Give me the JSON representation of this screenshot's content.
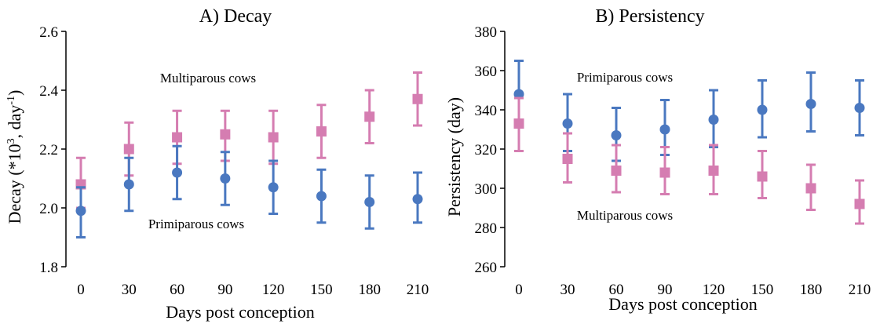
{
  "colors": {
    "primiparous": "#4a78c0",
    "multiparous": "#d57db1",
    "axis": "#000000"
  },
  "chart_data": [
    {
      "type": "scatter",
      "title": "A) Decay",
      "xlabel": "Days post conception",
      "ylabel": "Decay (*10",
      "ylabel_sup1": "3",
      "ylabel_mid": ", day",
      "ylabel_sup2": "-1",
      "ylabel_end": ")",
      "x": [
        0,
        30,
        60,
        90,
        120,
        150,
        180,
        210
      ],
      "x_tick_labels": [
        "0",
        "30",
        "60",
        "90",
        "120",
        "150",
        "180",
        "210"
      ],
      "ylim": [
        1.8,
        2.6
      ],
      "y_ticks": [
        1.8,
        2.0,
        2.2,
        2.4,
        2.6
      ],
      "y_tick_labels": [
        "1.8",
        "2.0",
        "2.2",
        "2.4",
        "2.6"
      ],
      "grid": false,
      "series": [
        {
          "name": "Multiparous cows",
          "marker": "square",
          "color": "#d57db1",
          "values": [
            2.08,
            2.2,
            2.24,
            2.25,
            2.24,
            2.26,
            2.31,
            2.37
          ],
          "err_low": [
            2.0,
            2.11,
            2.15,
            2.16,
            2.15,
            2.17,
            2.22,
            2.28
          ],
          "err_high": [
            2.17,
            2.29,
            2.33,
            2.33,
            2.33,
            2.35,
            2.4,
            2.46
          ]
        },
        {
          "name": "Primiparous cows",
          "marker": "circle",
          "color": "#4a78c0",
          "values": [
            1.99,
            2.08,
            2.12,
            2.1,
            2.07,
            2.04,
            2.02,
            2.03
          ],
          "err_low": [
            1.9,
            1.99,
            2.03,
            2.01,
            1.98,
            1.95,
            1.93,
            1.95
          ],
          "err_high": [
            2.07,
            2.17,
            2.21,
            2.19,
            2.16,
            2.13,
            2.11,
            2.12
          ]
        }
      ]
    },
    {
      "type": "scatter",
      "title": "B) Persistency",
      "xlabel": "Days post conception",
      "ylabel": "Persistency (day)",
      "x": [
        0,
        30,
        60,
        90,
        120,
        150,
        180,
        210
      ],
      "x_tick_labels": [
        "0",
        "30",
        "60",
        "90",
        "120",
        "150",
        "180",
        "210"
      ],
      "ylim": [
        260,
        380
      ],
      "y_ticks": [
        260,
        280,
        300,
        320,
        340,
        360,
        380
      ],
      "y_tick_labels": [
        "260",
        "280",
        "300",
        "320",
        "340",
        "360",
        "380"
      ],
      "grid": false,
      "series": [
        {
          "name": "Primiparous cows",
          "marker": "circle",
          "color": "#4a78c0",
          "values": [
            348,
            333,
            327,
            330,
            335,
            340,
            343,
            341
          ],
          "err_low": [
            335,
            319,
            314,
            317,
            321,
            326,
            329,
            327
          ],
          "err_high": [
            365,
            348,
            341,
            345,
            350,
            355,
            359,
            355
          ]
        },
        {
          "name": "Multiparous cows",
          "marker": "square",
          "color": "#d57db1",
          "values": [
            333,
            315,
            309,
            308,
            309,
            306,
            300,
            292
          ],
          "err_low": [
            319,
            303,
            298,
            297,
            297,
            295,
            289,
            282
          ],
          "err_high": [
            346,
            328,
            322,
            321,
            322,
            319,
            312,
            304
          ]
        }
      ]
    }
  ]
}
